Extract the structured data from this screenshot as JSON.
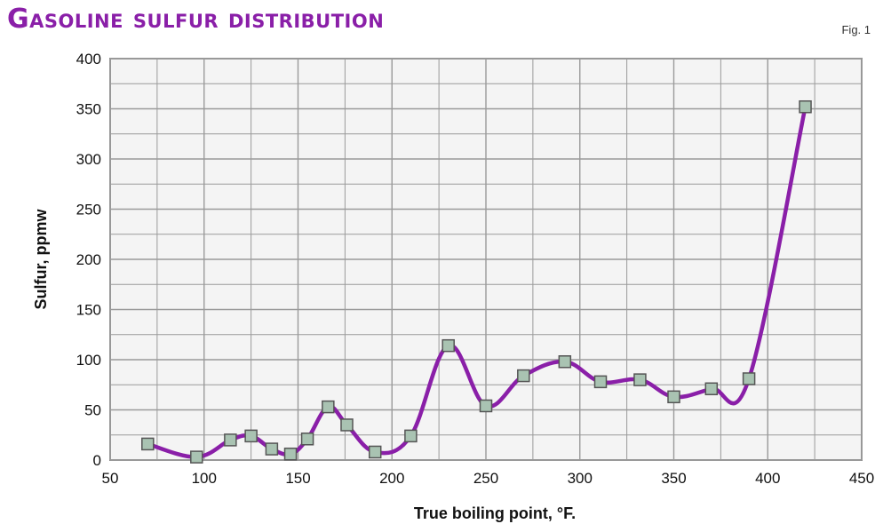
{
  "header": {
    "title": "Gasoline sulfur distribution",
    "fig_label": "Fig. 1"
  },
  "colors": {
    "title": "#8a1fa8",
    "line": "#8a1fa8",
    "marker_fill": "#a9c3b2",
    "marker_stroke": "#555555",
    "grid": "#9a9a9a",
    "plot_bg": "#f4f4f4"
  },
  "chart_data": {
    "type": "line",
    "title": "Gasoline sulfur distribution",
    "xlabel": "True boiling point, °F.",
    "ylabel": "Sulfur, ppmw",
    "xlim": [
      50,
      450
    ],
    "ylim": [
      0,
      400
    ],
    "x_ticks": [
      50,
      100,
      150,
      200,
      250,
      300,
      350,
      400,
      450
    ],
    "y_ticks": [
      0,
      50,
      100,
      150,
      200,
      250,
      300,
      350,
      400
    ],
    "grid": true,
    "marker": "square",
    "series": [
      {
        "x": [
          70,
          96,
          114,
          125,
          136,
          146,
          155,
          166,
          176,
          191,
          210,
          230,
          250,
          270,
          292,
          311,
          332,
          350,
          370,
          390,
          420
        ],
        "y": [
          16,
          3,
          20,
          24,
          11,
          6,
          21,
          53,
          35,
          8,
          24,
          114,
          54,
          84,
          98,
          78,
          80,
          63,
          71,
          81,
          352
        ]
      }
    ]
  }
}
